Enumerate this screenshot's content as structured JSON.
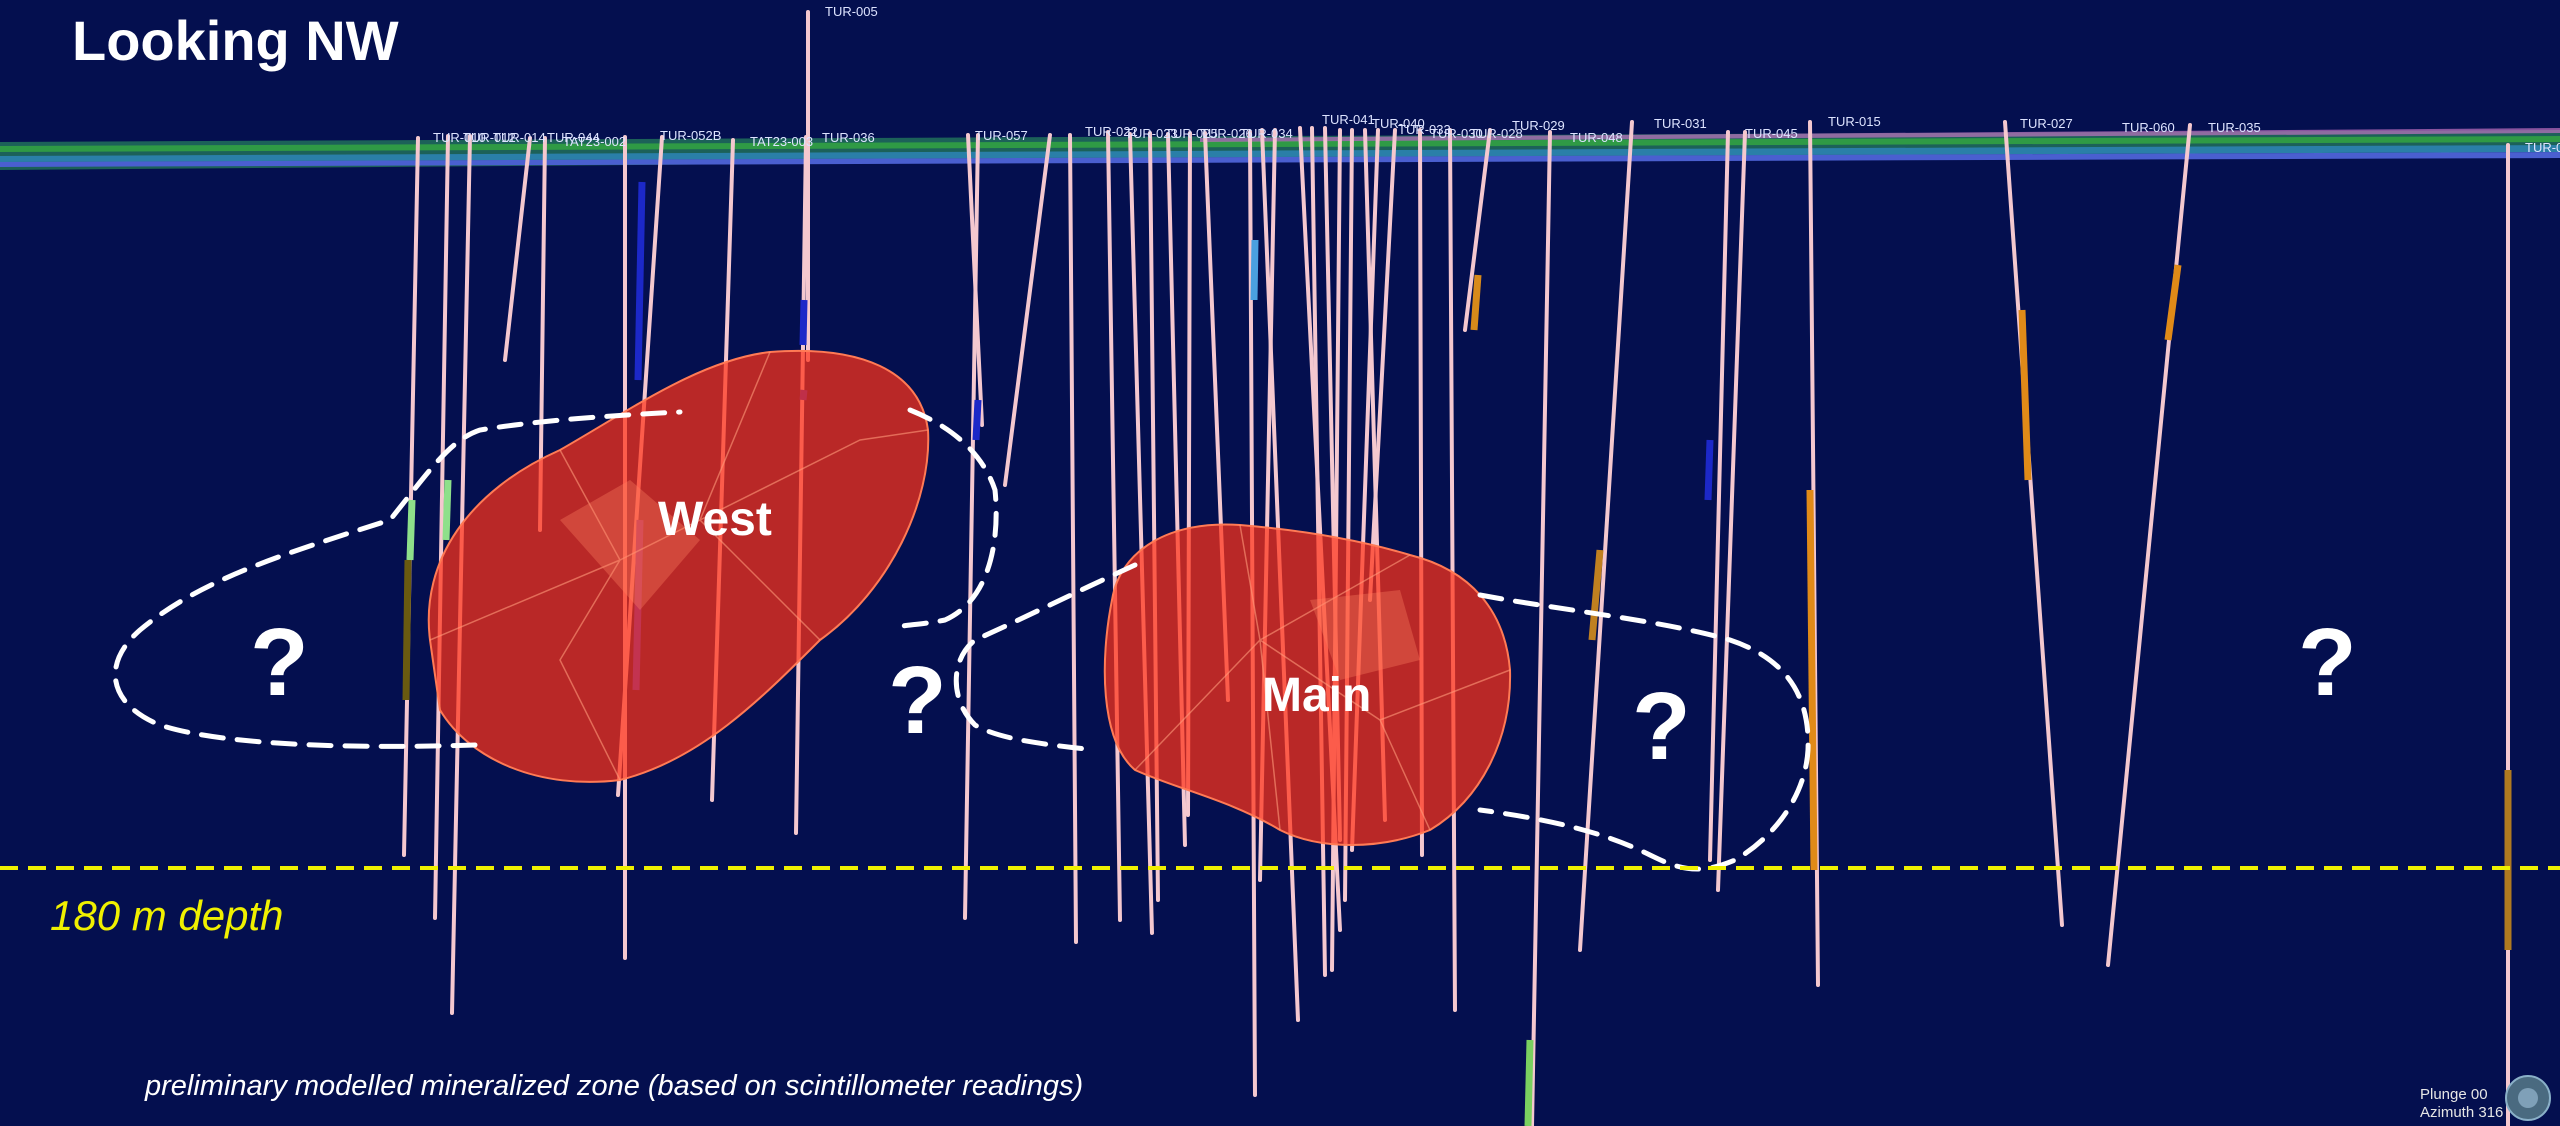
{
  "view": {
    "title": "Looking NW",
    "zone_west": "West",
    "zone_main": "Main",
    "question_mark": "?",
    "depth_label": "180 m depth",
    "caption": "preliminary modelled mineralized zone (based on scintillometer readings)",
    "plunge": "Plunge 00",
    "azimuth": "Azimuth 316"
  },
  "drill_holes": [
    "TUR-005",
    "TUR-010",
    "TUR-012",
    "TUR-014",
    "TUR-044",
    "TAT23-002",
    "TUR-052B",
    "TAT23-003",
    "TUR-036",
    "TUR-057",
    "TUR-022",
    "TUR-023",
    "TUR-025",
    "TUR-026",
    "TUR-034",
    "TUR-041",
    "TUR-040",
    "TUR-033",
    "TUR-030",
    "TUR-028",
    "TUR-029",
    "TUR-048",
    "TUR-031",
    "TUR-045",
    "TUR-015",
    "TUR-027",
    "TUR-060",
    "TUR-035",
    "TUR-0"
  ],
  "colors": {
    "background": "#040f4f",
    "mineralized_zone": "#ff3218",
    "depth_line": "#f0f000",
    "drill_hole": "#f4c8cf",
    "outline": "#ffffff"
  }
}
